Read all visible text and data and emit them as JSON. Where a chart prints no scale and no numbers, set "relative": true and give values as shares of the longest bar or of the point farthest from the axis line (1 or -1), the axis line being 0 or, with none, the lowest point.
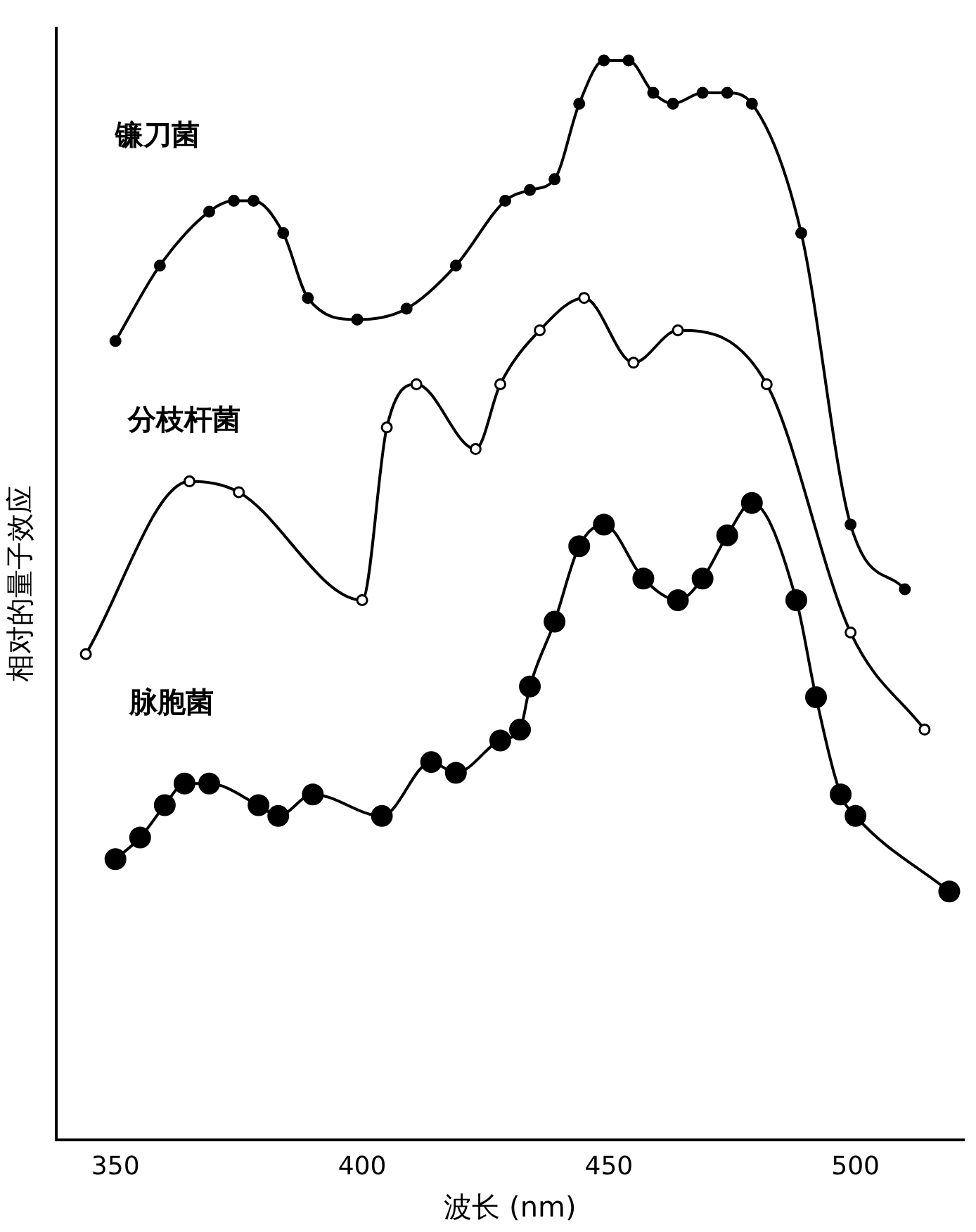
{
  "chart_data": {
    "type": "line",
    "relative": true,
    "xlabel": "波长 (nm)",
    "ylabel": "相对的量子效应",
    "xlim": [
      338,
      522
    ],
    "xticks": [
      350,
      400,
      450,
      500
    ],
    "grid": false,
    "legend": false,
    "marker": "circle",
    "line_style": "solid",
    "tick_labels": "x",
    "series": [
      {
        "name": "镰刀菌",
        "color": "#000000",
        "x": [
          350,
          359,
          369,
          374,
          378,
          384,
          389,
          399,
          409,
          419,
          429,
          434,
          439,
          444,
          449,
          454,
          459,
          463,
          469,
          474,
          479,
          489,
          499,
          510
        ],
        "values": [
          0.74,
          0.81,
          0.86,
          0.87,
          0.87,
          0.84,
          0.78,
          0.76,
          0.77,
          0.81,
          0.87,
          0.88,
          0.89,
          0.96,
          1.0,
          1.0,
          0.97,
          0.96,
          0.97,
          0.97,
          0.96,
          0.84,
          0.57,
          0.51
        ]
      },
      {
        "name": "分枝杆菌",
        "color": "#000000",
        "x": [
          344,
          365,
          375,
          400,
          405,
          411,
          423,
          428,
          436,
          445,
          455,
          464,
          482,
          499,
          514
        ],
        "values": [
          0.45,
          0.61,
          0.6,
          0.5,
          0.66,
          0.7,
          0.64,
          0.7,
          0.75,
          0.78,
          0.72,
          0.75,
          0.7,
          0.47,
          0.38
        ]
      },
      {
        "name": "脉胞菌",
        "color": "#000000",
        "x": [
          350,
          355,
          360,
          364,
          369,
          379,
          383,
          390,
          404,
          414,
          419,
          428,
          432,
          434,
          439,
          444,
          449,
          457,
          464,
          469,
          474,
          479,
          488,
          492,
          497,
          500,
          519
        ],
        "values": [
          0.26,
          0.28,
          0.31,
          0.33,
          0.33,
          0.31,
          0.3,
          0.32,
          0.3,
          0.35,
          0.34,
          0.37,
          0.38,
          0.42,
          0.48,
          0.55,
          0.57,
          0.52,
          0.5,
          0.52,
          0.56,
          0.59,
          0.5,
          0.41,
          0.32,
          0.3,
          0.23
        ]
      }
    ]
  }
}
